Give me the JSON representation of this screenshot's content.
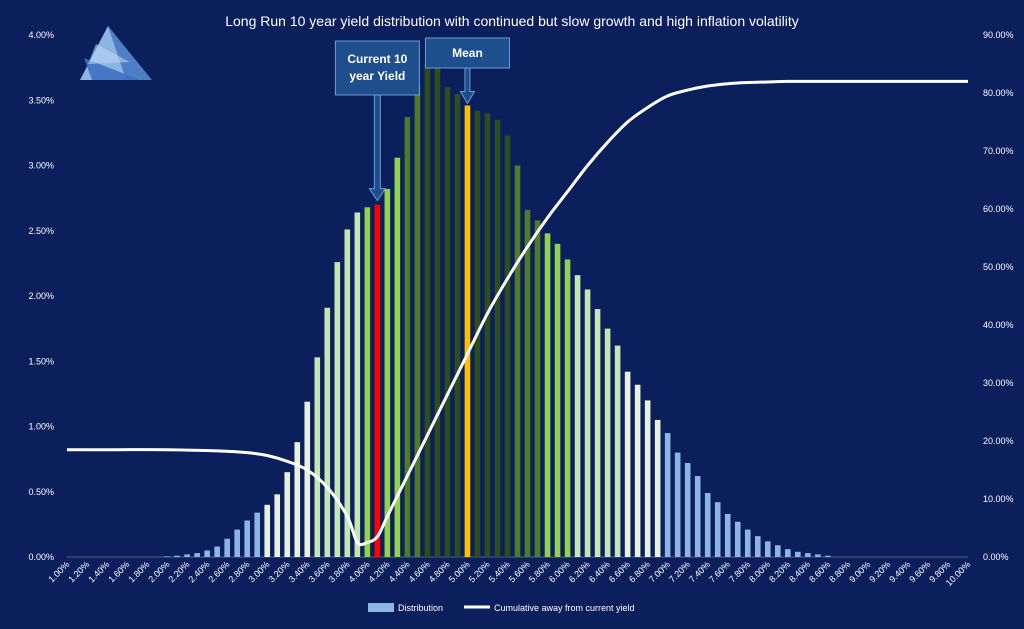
{
  "colors": {
    "background": "#0b1f5c",
    "bar_blue": "#8eb4e3",
    "bar_white": "#e8f0e0",
    "bar_palegreen": "#c3e6b4",
    "bar_lightgreen": "#92d050",
    "bar_midgreen": "#4f7a2a",
    "bar_darkgreen": "#2e4d1f",
    "current_bar": "#ff0000",
    "mean_bar": "#ffc000",
    "line": "#ffffff",
    "callout_fill": "#1f4e8c",
    "callout_stroke": "#6f9bd4"
  },
  "chart_data": {
    "type": "bar",
    "title": "Long Run 10 year yield distribution with continued but slow growth and high inflation volatility",
    "x_tick_labels": [
      "1.00%",
      "1.20%",
      "1.40%",
      "1.60%",
      "1.80%",
      "2.00%",
      "2.20%",
      "2.40%",
      "2.60%",
      "2.80%",
      "3.00%",
      "3.20%",
      "3.40%",
      "3.60%",
      "3.80%",
      "4.00%",
      "4.20%",
      "4.40%",
      "4.60%",
      "4.80%",
      "5.00%",
      "5.20%",
      "5.40%",
      "5.60%",
      "5.80%",
      "6.00%",
      "6.20%",
      "6.40%",
      "6.60%",
      "6.80%",
      "7.00%",
      "7.20%",
      "7.40%",
      "7.60%",
      "7.80%",
      "8.00%",
      "8.20%",
      "8.40%",
      "8.60%",
      "8.80%",
      "9.00%",
      "9.20%",
      "9.40%",
      "9.60%",
      "9.80%",
      "10.00%"
    ],
    "y_left_ticks": [
      "0.00%",
      "0.50%",
      "1.00%",
      "1.50%",
      "2.00%",
      "2.50%",
      "3.00%",
      "3.50%",
      "4.00%"
    ],
    "y_left_lim": [
      0,
      4.0
    ],
    "y_right_ticks": [
      "0.00%",
      "10.00%",
      "20.00%",
      "30.00%",
      "40.00%",
      "50.00%",
      "60.00%",
      "70.00%",
      "80.00%",
      "90.00%"
    ],
    "y_right_lim": [
      0,
      90
    ],
    "x_range": [
      1.0,
      10.0
    ],
    "bars": {
      "x": [
        2.0,
        2.1,
        2.2,
        2.3,
        2.4,
        2.5,
        2.6,
        2.7,
        2.8,
        2.9,
        3.0,
        3.1,
        3.2,
        3.3,
        3.4,
        3.5,
        3.6,
        3.7,
        3.8,
        3.9,
        4.0,
        4.1,
        4.2,
        4.3,
        4.4,
        4.5,
        4.6,
        4.7,
        4.8,
        4.9,
        5.0,
        5.1,
        5.2,
        5.3,
        5.4,
        5.5,
        5.6,
        5.7,
        5.8,
        5.9,
        6.0,
        6.1,
        6.2,
        6.3,
        6.4,
        6.5,
        6.6,
        6.7,
        6.8,
        6.9,
        7.0,
        7.1,
        7.2,
        7.3,
        7.4,
        7.5,
        7.6,
        7.7,
        7.8,
        7.9,
        8.0,
        8.1,
        8.2,
        8.3,
        8.4,
        8.5,
        8.6
      ],
      "values": [
        0.005,
        0.01,
        0.02,
        0.03,
        0.05,
        0.08,
        0.14,
        0.21,
        0.28,
        0.34,
        0.4,
        0.48,
        0.65,
        0.88,
        1.19,
        1.53,
        1.91,
        2.26,
        2.51,
        2.64,
        2.68,
        2.7,
        2.82,
        3.06,
        3.37,
        3.63,
        3.78,
        3.78,
        3.6,
        3.55,
        3.46,
        3.42,
        3.4,
        3.35,
        3.23,
        3.0,
        2.66,
        2.58,
        2.48,
        2.4,
        2.28,
        2.16,
        2.05,
        1.9,
        1.75,
        1.62,
        1.42,
        1.32,
        1.2,
        1.05,
        0.95,
        0.8,
        0.72,
        0.62,
        0.49,
        0.42,
        0.33,
        0.27,
        0.21,
        0.16,
        0.12,
        0.09,
        0.06,
        0.04,
        0.03,
        0.02,
        0.01
      ],
      "current_x": 4.1,
      "current_value": 2.7,
      "mean_x": 5.0,
      "mean_value": 3.46
    },
    "cumulative": {
      "x": [
        1.0,
        1.5,
        2.0,
        2.5,
        2.8,
        3.0,
        3.2,
        3.4,
        3.6,
        3.8,
        3.9,
        4.0,
        4.1,
        4.2,
        4.4,
        4.6,
        4.8,
        5.0,
        5.2,
        5.4,
        5.6,
        5.8,
        6.0,
        6.2,
        6.4,
        6.6,
        6.8,
        7.0,
        7.2,
        7.4,
        7.6,
        7.8,
        8.0,
        8.2,
        8.5,
        9.0,
        9.5,
        10.0
      ],
      "values": [
        18.5,
        18.5,
        18.5,
        18.3,
        18.0,
        17.5,
        16.5,
        15.0,
        12.0,
        7.0,
        2.5,
        2.5,
        3.5,
        7.0,
        14.0,
        21.0,
        28.0,
        35.0,
        42.0,
        48.0,
        53.5,
        58.5,
        63.0,
        67.5,
        71.5,
        75.0,
        77.5,
        79.5,
        80.5,
        81.2,
        81.6,
        81.8,
        81.9,
        82.0,
        82.0,
        82.0,
        82.0,
        82.0
      ]
    },
    "callouts": {
      "current_label": "Current 10 year Yield",
      "current_line1": "Current 10",
      "current_line2": "year Yield",
      "mean_label": "Mean"
    },
    "legend": {
      "bars": "Distribution",
      "line": "Cumulative away from current yield"
    },
    "legend_position": "bottom",
    "grid": false
  }
}
